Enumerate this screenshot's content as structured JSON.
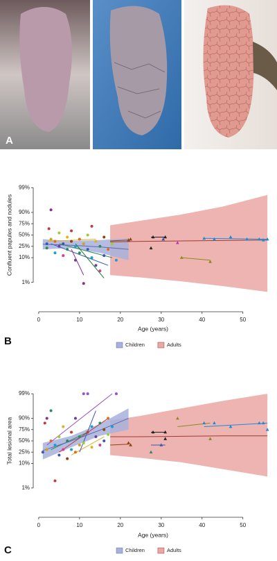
{
  "image_panel": {
    "label": "A"
  },
  "chart_data": [
    {
      "type": "scatter",
      "panel_label": "B",
      "y_label": "Confluent papules and nodules",
      "x_label": "Age (years)",
      "xlim": [
        -1,
        57
      ],
      "xticks": [
        0,
        10,
        20,
        30,
        40,
        50
      ],
      "ylim": [
        0.1,
        99.9
      ],
      "y_scale": "logit",
      "yticks": [
        {
          "value": 1,
          "label": "1%"
        },
        {
          "value": 10,
          "label": "10%"
        },
        {
          "value": 25,
          "label": "25%"
        },
        {
          "value": 50,
          "label": "50%"
        },
        {
          "value": 75,
          "label": "75%"
        },
        {
          "value": 90,
          "label": "90%"
        },
        {
          "value": 99,
          "label": "99%"
        }
      ],
      "bands": [
        {
          "name": "Children",
          "color": "#a7b2dc",
          "line_color": "#5b6aa8",
          "x": [
            1,
            8,
            15,
            22
          ],
          "lower": [
            20,
            22,
            15,
            8
          ],
          "upper": [
            40,
            36,
            38,
            42
          ],
          "fit": [
            29,
            27,
            24,
            20
          ]
        },
        {
          "name": "Adults",
          "color": "#eba7a5",
          "line_color": "#9e3a33",
          "x": [
            17.5,
            25,
            35,
            45,
            56
          ],
          "lower": [
            2,
            1.6,
            1.1,
            0.7,
            0.4
          ],
          "upper": [
            72,
            80,
            88,
            94,
            98
          ],
          "fit": [
            34,
            35,
            36,
            37,
            38
          ]
        }
      ],
      "child_points": {
        "x": [
          2,
          2.5,
          3,
          2,
          3,
          4,
          4,
          5,
          5,
          6,
          6,
          7,
          7,
          8,
          8,
          9,
          9,
          10,
          10,
          11,
          11,
          12,
          12,
          13,
          13,
          14,
          14,
          15,
          15,
          16,
          16,
          17,
          18,
          19
        ],
        "y": [
          30,
          65,
          92,
          22,
          40,
          35,
          15,
          25,
          55,
          30,
          12,
          45,
          20,
          35,
          60,
          25,
          8,
          40,
          15,
          30,
          0.9,
          50,
          20,
          70,
          10,
          35,
          5,
          25,
          3,
          45,
          12,
          20,
          30,
          8
        ],
        "colors": [
          "#3a55b0",
          "#c23b3b",
          "#8a2f8a",
          "#2e8b57",
          "#d4a017",
          "#e06b1f",
          "#1f9bd4",
          "#6b3fa0",
          "#9acd32",
          "#3a55b0",
          "#d43f8c",
          "#e0b020",
          "#2e8b57",
          "#8b4513",
          "#c23b3b",
          "#1f9bd4",
          "#6b3fa0",
          "#e06b1f",
          "#2e8b57",
          "#d4a017",
          "#8a2f8a",
          "#9acd32",
          "#3a55b0",
          "#c23b3b",
          "#1f9bd4",
          "#e0b020",
          "#6b3fa0",
          "#2e8b57",
          "#d43f8c",
          "#8b4513",
          "#3a55b0",
          "#e06b1f",
          "#9acd32",
          "#1f9bd4"
        ]
      },
      "child_segments": [
        {
          "x": [
            2,
            14
          ],
          "y": [
            35,
            40
          ],
          "color": "#e0b020"
        },
        {
          "x": [
            3,
            17
          ],
          "y": [
            30,
            5
          ],
          "color": "#3a55b0"
        },
        {
          "x": [
            8,
            11
          ],
          "y": [
            20,
            2
          ],
          "color": "#8a2f8a"
        },
        {
          "x": [
            5,
            18
          ],
          "y": [
            30,
            10
          ],
          "color": "#2e8b57"
        },
        {
          "x": [
            9,
            16
          ],
          "y": [
            30,
            1.5
          ],
          "color": "#1a7a2a"
        }
      ],
      "adult_points": {
        "x": [
          22,
          22.5,
          27.5,
          28,
          31,
          30.5,
          34,
          35,
          42,
          40.5,
          43,
          47,
          51,
          54,
          55,
          56
        ],
        "y": [
          38,
          40,
          22,
          45,
          45,
          40,
          32,
          10,
          7,
          42,
          40,
          45,
          40,
          40,
          38,
          40
        ],
        "colors": [
          "#8b4513",
          "#8b4513",
          "#222222",
          "#222222",
          "#222222",
          "#3a55b0",
          "#c030c0",
          "#8a8a20",
          "#8a8a20",
          "#1f8ad4",
          "#1f8ad4",
          "#1f8ad4",
          "#1f8ad4",
          "#1f8ad4",
          "#1f8ad4",
          "#1f8ad4"
        ]
      },
      "adult_segments": [
        {
          "x": [
            27.5,
            31
          ],
          "y": [
            45,
            45
          ],
          "color": "#222222"
        },
        {
          "x": [
            35,
            42
          ],
          "y": [
            10,
            8
          ],
          "color": "#8a8a20"
        },
        {
          "x": [
            40.5,
            56
          ],
          "y": [
            42,
            40
          ],
          "color": "#1f8ad4"
        },
        {
          "x": [
            17.5,
            22
          ],
          "y": [
            36,
            38
          ],
          "color": "#8b4513"
        }
      ]
    },
    {
      "type": "scatter",
      "panel_label": "C",
      "y_label": "Total lesional area",
      "x_label": "Age (years)",
      "xlim": [
        -1,
        57
      ],
      "xticks": [
        0,
        10,
        20,
        30,
        40,
        50
      ],
      "ylim": [
        0.1,
        99.9
      ],
      "y_scale": "logit",
      "yticks": [
        {
          "value": 1,
          "label": "1%"
        },
        {
          "value": 10,
          "label": "10%"
        },
        {
          "value": 25,
          "label": "25%"
        },
        {
          "value": 50,
          "label": "50%"
        },
        {
          "value": 75,
          "label": "75%"
        },
        {
          "value": 90,
          "label": "90%"
        },
        {
          "value": 99,
          "label": "99%"
        }
      ],
      "bands": [
        {
          "name": "Children",
          "color": "#a7b2dc",
          "line_color": "#5b6aa8",
          "x": [
            1,
            8,
            15,
            22
          ],
          "lower": [
            14,
            35,
            62,
            75
          ],
          "upper": [
            45,
            62,
            84,
            96
          ],
          "fit": [
            28,
            50,
            74,
            90
          ]
        },
        {
          "name": "Adults",
          "color": "#eba7a5",
          "line_color": "#9e3a33",
          "x": [
            17.5,
            25,
            35,
            45,
            56
          ],
          "lower": [
            20,
            16,
            11,
            6,
            3
          ],
          "upper": [
            88,
            92,
            96,
            98,
            99
          ],
          "fit": [
            60,
            60,
            61,
            62,
            62
          ]
        }
      ],
      "child_points": {
        "x": [
          1,
          1.5,
          2,
          3,
          2,
          3,
          4,
          4,
          5,
          5,
          6,
          6,
          7,
          7,
          8,
          8,
          9,
          9,
          10,
          10,
          11,
          11,
          12,
          12,
          13,
          13,
          14,
          15,
          15,
          16,
          16,
          17,
          17,
          18,
          19
        ],
        "y": [
          25,
          85,
          90,
          95,
          30,
          50,
          40,
          2,
          60,
          20,
          30,
          80,
          50,
          15,
          70,
          30,
          90,
          25,
          60,
          40,
          99,
          45,
          99,
          70,
          80,
          35,
          60,
          85,
          40,
          75,
          50,
          90,
          65,
          80,
          99
        ],
        "colors": [
          "#3a55b0",
          "#c23b3b",
          "#8a2f8a",
          "#2e8b57",
          "#d4a017",
          "#e06b1f",
          "#1f9bd4",
          "#c23b3b",
          "#9acd32",
          "#3a55b0",
          "#d43f8c",
          "#e0b020",
          "#2e8b57",
          "#8b4513",
          "#c23b3b",
          "#1f9bd4",
          "#6b3fa0",
          "#e06b1f",
          "#2e8b57",
          "#d4a017",
          "#9a50c8",
          "#9acd32",
          "#9a50c8",
          "#c23b3b",
          "#1f9bd4",
          "#e0b020",
          "#6b3fa0",
          "#2e8b57",
          "#d43f8c",
          "#8b4513",
          "#3a55b0",
          "#e06b1f",
          "#9acd32",
          "#1f9bd4",
          "#9a50c8"
        ]
      },
      "child_segments": [
        {
          "x": [
            2,
            18
          ],
          "y": [
            40,
            99
          ],
          "color": "#9a50c8"
        },
        {
          "x": [
            5,
            17
          ],
          "y": [
            25,
            90
          ],
          "color": "#c23b3b"
        },
        {
          "x": [
            3,
            12
          ],
          "y": [
            30,
            70
          ],
          "color": "#2e8b57"
        },
        {
          "x": [
            8,
            16
          ],
          "y": [
            20,
            60
          ],
          "color": "#e0b020"
        },
        {
          "x": [
            10,
            14
          ],
          "y": [
            25,
            95
          ],
          "color": "#3a55b0"
        }
      ],
      "adult_points": {
        "x": [
          22,
          22.5,
          27.5,
          28,
          31,
          31,
          30,
          34,
          40.5,
          42,
          43,
          47,
          54,
          55,
          56
        ],
        "y": [
          45,
          40,
          25,
          70,
          70,
          55,
          40,
          90,
          85,
          55,
          85,
          80,
          85,
          85,
          75
        ],
        "colors": [
          "#8b4513",
          "#8b4513",
          "#2e8b57",
          "#222222",
          "#222222",
          "#222222",
          "#3a55b0",
          "#8a8a20",
          "#1f8ad4",
          "#8a8a20",
          "#1f8ad4",
          "#1f8ad4",
          "#1f8ad4",
          "#1f8ad4",
          "#1f8ad4"
        ]
      },
      "adult_segments": [
        {
          "x": [
            27.5,
            31
          ],
          "y": [
            70,
            70
          ],
          "color": "#222222"
        },
        {
          "x": [
            34,
            42
          ],
          "y": [
            80,
            85
          ],
          "color": "#8a8a20"
        },
        {
          "x": [
            40.5,
            56
          ],
          "y": [
            80,
            85
          ],
          "color": "#1f8ad4"
        },
        {
          "x": [
            17.5,
            22
          ],
          "y": [
            40,
            42
          ],
          "color": "#8b4513"
        },
        {
          "x": [
            27.5,
            31
          ],
          "y": [
            40,
            40
          ],
          "color": "#3a55b0"
        }
      ]
    }
  ]
}
